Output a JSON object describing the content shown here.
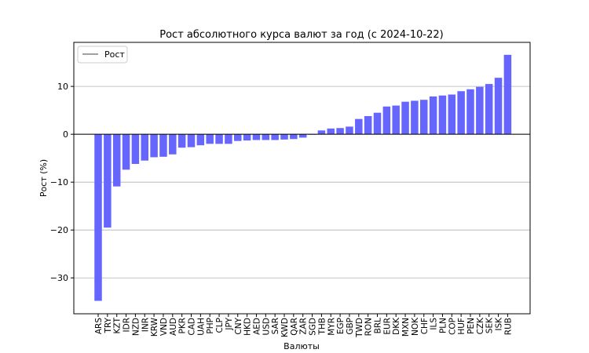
{
  "chart_data": {
    "type": "bar",
    "title": "Рост абсолютного курса валют за год (с 2024-10-22)",
    "xlabel": "Валюты",
    "ylabel": "Рост (%)",
    "ylim": [
      -37.5,
      19.2
    ],
    "yticks": [
      10,
      0,
      -10,
      -20,
      -30
    ],
    "ytick_labels": [
      "10",
      "0",
      "−10",
      "−20",
      "−30"
    ],
    "grid": "horizontal",
    "zero_line": true,
    "legend": {
      "position": "top-left",
      "entries": [
        "Рост"
      ]
    },
    "colors": {
      "bar": "#6666ff",
      "grid": "#b0b0b0",
      "axis": "#000000"
    },
    "categories": [
      "ARS",
      "TRY",
      "KZT",
      "IDR",
      "NZD",
      "INR",
      "KRW",
      "VND",
      "AUD",
      "PKR",
      "CAD",
      "UAH",
      "PHP",
      "CLP",
      "JPY",
      "CNY",
      "HKD",
      "AED",
      "USD",
      "SAR",
      "KWD",
      "QAR",
      "ZAR",
      "SGD",
      "THB",
      "MYR",
      "EGP",
      "GBP",
      "TWD",
      "RON",
      "BRL",
      "EUR",
      "DKK",
      "MXN",
      "NOK",
      "CHF",
      "ILS",
      "PLN",
      "COP",
      "HUF",
      "PEN",
      "CZK",
      "SEK",
      "ISK",
      "RUB"
    ],
    "values": [
      -34.8,
      -19.5,
      -10.9,
      -7.4,
      -6.2,
      -5.5,
      -4.8,
      -4.7,
      -4.2,
      -2.8,
      -2.7,
      -2.3,
      -2.0,
      -2.0,
      -2.0,
      -1.4,
      -1.3,
      -1.2,
      -1.2,
      -1.2,
      -1.1,
      -1.0,
      -0.7,
      -0.1,
      0.8,
      1.2,
      1.3,
      1.6,
      3.2,
      3.8,
      4.5,
      5.8,
      6.0,
      6.8,
      7.0,
      7.2,
      7.9,
      8.1,
      8.3,
      9.0,
      9.4,
      9.9,
      10.5,
      11.8,
      16.6
    ]
  }
}
